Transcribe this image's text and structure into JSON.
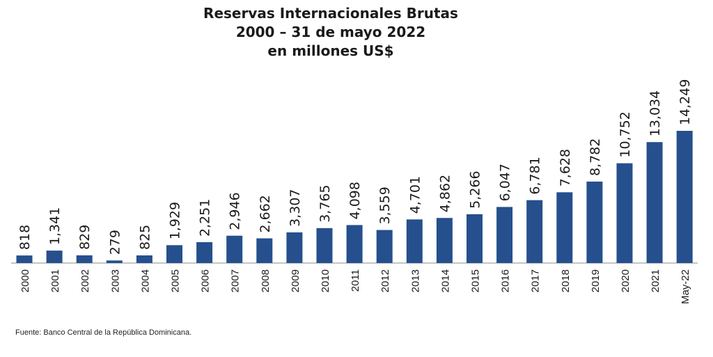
{
  "colors": {
    "bar": "#25508d",
    "text": "#1a1a1a",
    "axis": "#8c8c8c"
  },
  "chart_data": {
    "type": "bar",
    "title": "Reservas Internacionales Brutas",
    "subtitle": [
      "2000 – 31 de mayo 2022",
      "en millones US$"
    ],
    "categories": [
      "2000",
      "2001",
      "2002",
      "2003",
      "2004",
      "2005",
      "2006",
      "2007",
      "2008",
      "2009",
      "2010",
      "2011",
      "2012",
      "2013",
      "2014",
      "2015",
      "2016",
      "2017",
      "2018",
      "2019",
      "2020",
      "2021",
      "May-22"
    ],
    "values": [
      818,
      1341,
      829,
      279,
      825,
      1929,
      2251,
      2946,
      2662,
      3307,
      3765,
      4098,
      3559,
      4701,
      4862,
      5266,
      6047,
      6781,
      7628,
      8782,
      10752,
      13034,
      14249
    ],
    "data_labels": [
      "818",
      "1,341",
      "829",
      "279",
      "825",
      "1,929",
      "2,251",
      "2,946",
      "2,662",
      "3,307",
      "3,765",
      "4,098",
      "3,559",
      "4,701",
      "4,862",
      "5,266",
      "6,047",
      "6,781",
      "7,628",
      "8,782",
      "10,752",
      "13,034",
      "14,249"
    ],
    "ylim": [
      0,
      14249
    ],
    "grid": false,
    "legend": "none"
  },
  "source": "Fuente: Banco Central de la República Dominicana."
}
